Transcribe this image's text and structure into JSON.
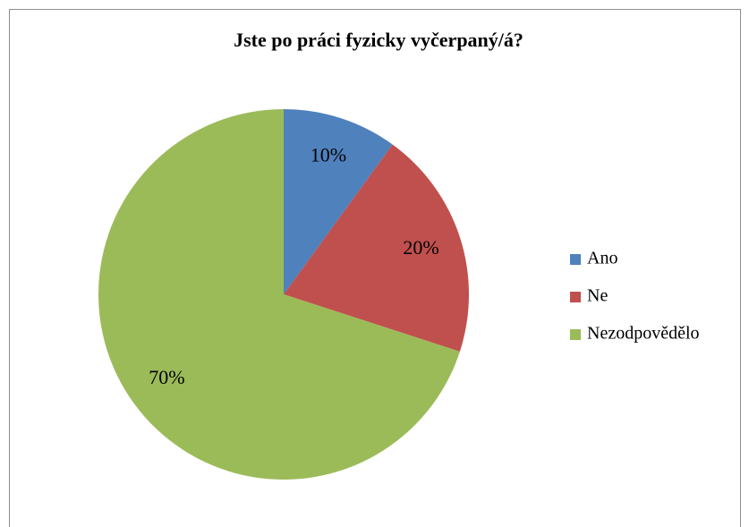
{
  "chart_data": {
    "type": "pie",
    "title": "Jste po práci fyzicky vyčerpaný/á?",
    "categories": [
      "Ano",
      "Ne",
      "Nezodpovědělo"
    ],
    "values": [
      10,
      20,
      70
    ],
    "value_labels": [
      "10%",
      "20%",
      "70%"
    ],
    "colors": [
      "#4f81bd",
      "#c0504d",
      "#9bbb59"
    ],
    "legend": "right"
  }
}
